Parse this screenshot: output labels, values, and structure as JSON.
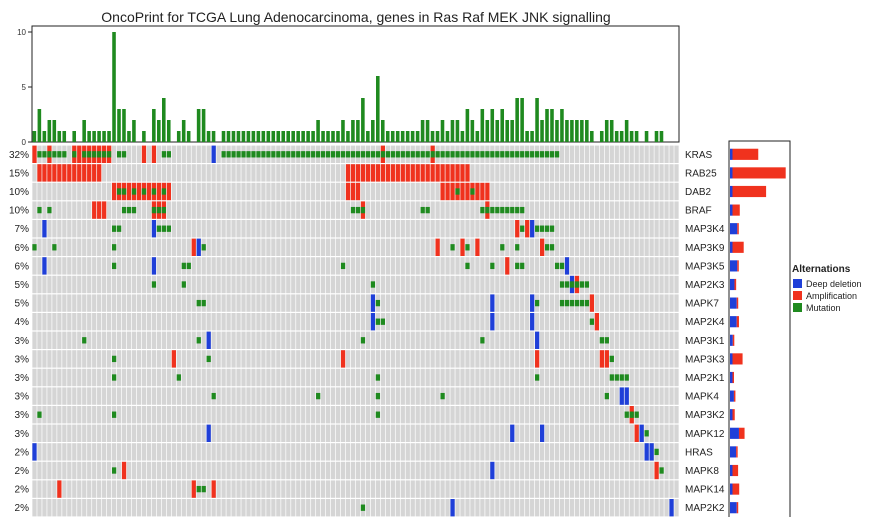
{
  "chart_data": {
    "type": "heatmap",
    "title": "OncoPrint for TCGA Lung Adenocarcinoma, genes in Ras Raf MEK JNK signalling",
    "n_samples": 130,
    "top_axis": {
      "ticks": [
        0,
        5,
        10
      ],
      "ylim": [
        0,
        10
      ]
    },
    "legend": {
      "title": "Alternations",
      "placement": "right",
      "items": [
        {
          "label": "Deep deletion",
          "key": "D",
          "color": "#1f3fd8"
        },
        {
          "label": "Amplification",
          "key": "A",
          "color": "#f0321e"
        },
        {
          "label": "Mutation",
          "key": "M",
          "color": "#1f8a1f"
        }
      ]
    },
    "colors": {
      "background_cell": "#d5d5d5",
      "grid": "#ffffff",
      "mutation": "#1f8a1f",
      "amplification": "#f0321e",
      "deletion": "#1f3fd8"
    },
    "genes": [
      {
        "name": "KRAS",
        "pct": "32%",
        "amp": 0.46,
        "del": 0.04,
        "alts": {
          "M": [
            1,
            2,
            3,
            4,
            5,
            6,
            8,
            10,
            11,
            12,
            13,
            14,
            15,
            17,
            18,
            26,
            27,
            38,
            39,
            40,
            41,
            42,
            43,
            44,
            45,
            46,
            47,
            48,
            49,
            50,
            51,
            52,
            53,
            54,
            55,
            56,
            57,
            58,
            59,
            60,
            61,
            62,
            63,
            64,
            65,
            66,
            67,
            68,
            69,
            70,
            71,
            72,
            73,
            74,
            75,
            76,
            77,
            78,
            79,
            80,
            81,
            82,
            83,
            84,
            85,
            86,
            87,
            88,
            89,
            90,
            91,
            92,
            93,
            94,
            95,
            96,
            97,
            98,
            99,
            100,
            101,
            102,
            103,
            104,
            105
          ],
          "A": [
            0,
            3,
            8,
            9,
            10,
            11,
            12,
            13,
            14,
            15,
            22,
            24,
            70,
            80
          ],
          "D": [
            36
          ]
        }
      },
      {
        "name": "RAB25",
        "pct": "15%",
        "amp": 0.95,
        "del": 0.02,
        "alts": {
          "A": [
            1,
            2,
            3,
            4,
            5,
            6,
            7,
            8,
            9,
            10,
            11,
            12,
            13,
            63,
            64,
            65,
            66,
            67,
            68,
            69,
            70,
            71,
            72,
            73,
            74,
            75,
            76,
            77,
            78,
            79,
            80,
            81,
            82,
            83,
            84,
            85,
            86,
            87
          ]
        }
      },
      {
        "name": "DAB2",
        "pct": "10%",
        "amp": 0.6,
        "del": 0.03,
        "alts": {
          "A": [
            16,
            17,
            18,
            19,
            20,
            21,
            22,
            23,
            24,
            25,
            26,
            27,
            63,
            64,
            65,
            82,
            83,
            84,
            85,
            86,
            87,
            88,
            89,
            90,
            91
          ],
          "M": [
            17,
            18,
            20,
            22,
            24,
            26,
            85,
            88
          ]
        }
      },
      {
        "name": "BRAF",
        "pct": "10%",
        "amp": 0.13,
        "del": 0.02,
        "alts": {
          "M": [
            1,
            3,
            18,
            19,
            20,
            24,
            25,
            26,
            64,
            65,
            66,
            78,
            79,
            90,
            91,
            92,
            93,
            94,
            95,
            96,
            97,
            98
          ],
          "A": [
            12,
            13,
            14,
            24,
            25,
            26,
            66,
            91
          ]
        }
      },
      {
        "name": "MAP3K4",
        "pct": "7%",
        "amp": 0.02,
        "del": 0.13,
        "alts": {
          "D": [
            2,
            24,
            100
          ],
          "M": [
            16,
            17,
            25,
            26,
            27,
            98,
            101,
            102,
            103,
            104
          ],
          "A": [
            97,
            99
          ]
        }
      },
      {
        "name": "MAP3K9",
        "pct": "6%",
        "amp": 0.2,
        "del": 0.04,
        "alts": {
          "M": [
            0,
            4,
            16,
            34,
            84,
            87,
            94,
            97,
            103,
            104
          ],
          "A": [
            32,
            81,
            86,
            89,
            102
          ],
          "D": [
            33
          ]
        }
      },
      {
        "name": "MAP3K5",
        "pct": "6%",
        "amp": 0.02,
        "del": 0.13,
        "alts": {
          "D": [
            2,
            24,
            107
          ],
          "M": [
            16,
            30,
            31,
            62,
            87,
            92,
            97,
            98,
            105,
            106
          ],
          "A": [
            95
          ]
        }
      },
      {
        "name": "MAP2K3",
        "pct": "5%",
        "amp": 0.03,
        "del": 0.08,
        "alts": {
          "M": [
            24,
            30,
            68,
            106,
            107,
            108,
            109,
            110,
            111
          ],
          "D": [
            108
          ],
          "A": [
            109
          ]
        }
      },
      {
        "name": "MAPK7",
        "pct": "5%",
        "amp": 0.02,
        "del": 0.12,
        "alts": {
          "D": [
            68,
            92,
            100
          ],
          "M": [
            33,
            34,
            69,
            101,
            106,
            107,
            108,
            109,
            110,
            111
          ],
          "A": [
            112
          ]
        }
      },
      {
        "name": "MAP2K4",
        "pct": "4%",
        "amp": 0.04,
        "del": 0.12,
        "alts": {
          "D": [
            68,
            92,
            100
          ],
          "M": [
            69,
            70,
            112
          ],
          "A": [
            113
          ]
        }
      },
      {
        "name": "MAP3K1",
        "pct": "3%",
        "amp": 0.02,
        "del": 0.05,
        "alts": {
          "M": [
            10,
            33,
            66,
            90,
            114,
            115
          ],
          "D": [
            35,
            101
          ]
        }
      },
      {
        "name": "MAP3K3",
        "pct": "3%",
        "amp": 0.18,
        "del": 0.02,
        "alts": {
          "A": [
            28,
            62,
            101,
            114,
            115
          ],
          "M": [
            16,
            35,
            116
          ]
        }
      },
      {
        "name": "MAP2K1",
        "pct": "3%",
        "amp": 0.02,
        "del": 0.02,
        "alts": {
          "M": [
            16,
            29,
            69,
            101,
            116,
            117,
            118,
            119
          ]
        }
      },
      {
        "name": "MAPK4",
        "pct": "3%",
        "amp": 0.02,
        "del": 0.07,
        "alts": {
          "M": [
            36,
            57,
            69,
            82,
            115
          ],
          "D": [
            118,
            119
          ]
        }
      },
      {
        "name": "MAP3K2",
        "pct": "3%",
        "amp": 0.04,
        "del": 0.02,
        "alts": {
          "M": [
            1,
            16,
            69,
            119,
            120,
            121
          ],
          "A": [
            120
          ]
        }
      },
      {
        "name": "MAPK12",
        "pct": "3%",
        "amp": 0.1,
        "del": 0.16,
        "alts": {
          "D": [
            35,
            96,
            102,
            122
          ],
          "A": [
            121
          ],
          "M": [
            123
          ]
        }
      },
      {
        "name": "HRAS",
        "pct": "2%",
        "amp": 0.02,
        "del": 0.11,
        "alts": {
          "D": [
            0,
            123,
            124
          ],
          "M": [
            125
          ]
        }
      },
      {
        "name": "MAPK8",
        "pct": "2%",
        "amp": 0.1,
        "del": 0.02,
        "alts": {
          "A": [
            18,
            125
          ],
          "M": [
            16,
            126
          ],
          "D": [
            92
          ]
        }
      },
      {
        "name": "MAPK14",
        "pct": "2%",
        "amp": 0.12,
        "del": 0.02,
        "alts": {
          "A": [
            5,
            32,
            36
          ],
          "M": [
            34,
            33
          ]
        }
      },
      {
        "name": "MAP2K2",
        "pct": "2%",
        "amp": 0.02,
        "del": 0.12,
        "alts": {
          "D": [
            84,
            128
          ],
          "M": [
            66
          ]
        }
      }
    ]
  }
}
